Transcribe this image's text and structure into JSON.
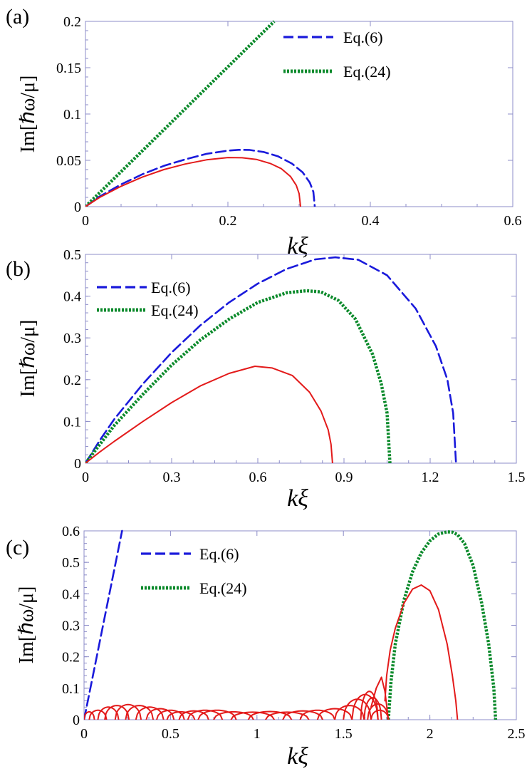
{
  "chart_data": [
    {
      "type": "line",
      "panel_label": "(a)",
      "xlabel": "kξ",
      "ylabel": "Im[ℏω/μ]",
      "xlim": [
        0,
        0.6
      ],
      "ylim": [
        0,
        0.2
      ],
      "xticks": [
        0,
        0.2,
        0.4,
        0.6
      ],
      "xtick_labels": [
        "0",
        "0.2",
        "0.4",
        "0.6"
      ],
      "yticks": [
        0,
        0.05,
        0.1,
        0.15,
        0.2
      ],
      "ytick_labels": [
        "0",
        "0.05",
        "0.1",
        "0.15",
        "0.2"
      ],
      "legend_position": "top-right",
      "series": [
        {
          "name": "Eq.(6)",
          "style": "dashed",
          "color": "#1a1adb",
          "in_legend": true,
          "x": [
            0,
            0.02,
            0.05,
            0.08,
            0.11,
            0.14,
            0.17,
            0.2,
            0.215,
            0.23,
            0.25,
            0.27,
            0.29,
            0.305,
            0.315,
            0.32,
            0.322
          ],
          "y": [
            0,
            0.011,
            0.024,
            0.035,
            0.044,
            0.051,
            0.057,
            0.0605,
            0.0613,
            0.0612,
            0.059,
            0.0545,
            0.0465,
            0.037,
            0.026,
            0.016,
            0
          ]
        },
        {
          "name": "Eq.(24)",
          "style": "dotted",
          "color": "#0b8a2b",
          "in_legend": true,
          "x": [
            0,
            0.265
          ],
          "y": [
            0,
            0.2
          ]
        },
        {
          "name": "numerical",
          "style": "solid",
          "color": "#e31a1a",
          "in_legend": false,
          "x": [
            0,
            0.02,
            0.05,
            0.08,
            0.11,
            0.14,
            0.17,
            0.2,
            0.22,
            0.24,
            0.26,
            0.275,
            0.288,
            0.296,
            0.3,
            0.302
          ],
          "y": [
            0,
            0.01,
            0.022,
            0.032,
            0.04,
            0.046,
            0.0505,
            0.053,
            0.0528,
            0.051,
            0.0465,
            0.041,
            0.0325,
            0.023,
            0.014,
            0
          ]
        }
      ]
    },
    {
      "type": "line",
      "panel_label": "(b)",
      "xlabel": "kξ",
      "ylabel": "Im[ℏω/μ]",
      "xlim": [
        0,
        1.5
      ],
      "ylim": [
        0,
        0.5
      ],
      "xticks": [
        0,
        0.3,
        0.6,
        0.9,
        1.2,
        1.5
      ],
      "xtick_labels": [
        "0",
        "0.3",
        "0.6",
        "0.9",
        "1.2",
        "1.5"
      ],
      "yticks": [
        0,
        0.1,
        0.2,
        0.3,
        0.4,
        0.5
      ],
      "ytick_labels": [
        "0",
        "0.1",
        "0.2",
        "0.3",
        "0.4",
        "0.5"
      ],
      "legend_position": "top-left",
      "series": [
        {
          "name": "Eq.(6)",
          "style": "dashed",
          "color": "#1a1adb",
          "in_legend": true,
          "x": [
            0,
            0.05,
            0.1,
            0.2,
            0.3,
            0.4,
            0.5,
            0.6,
            0.7,
            0.8,
            0.87,
            0.95,
            1.05,
            1.15,
            1.22,
            1.26,
            1.28,
            1.29
          ],
          "y": [
            0,
            0.055,
            0.105,
            0.19,
            0.265,
            0.33,
            0.385,
            0.43,
            0.465,
            0.488,
            0.493,
            0.487,
            0.45,
            0.37,
            0.28,
            0.2,
            0.12,
            0
          ]
        },
        {
          "name": "Eq.(24)",
          "style": "dotted",
          "color": "#0b8a2b",
          "in_legend": true,
          "x": [
            0,
            0.05,
            0.1,
            0.2,
            0.3,
            0.4,
            0.5,
            0.6,
            0.7,
            0.77,
            0.82,
            0.88,
            0.94,
            1.0,
            1.03,
            1.05,
            1.06
          ],
          "y": [
            0,
            0.045,
            0.09,
            0.165,
            0.235,
            0.295,
            0.345,
            0.385,
            0.408,
            0.413,
            0.41,
            0.39,
            0.345,
            0.26,
            0.19,
            0.12,
            0
          ]
        },
        {
          "name": "numerical",
          "style": "solid",
          "color": "#e31a1a",
          "in_legend": false,
          "x": [
            0,
            0.05,
            0.1,
            0.2,
            0.3,
            0.4,
            0.5,
            0.59,
            0.65,
            0.72,
            0.78,
            0.82,
            0.845,
            0.855,
            0.86
          ],
          "y": [
            0,
            0.027,
            0.052,
            0.1,
            0.145,
            0.185,
            0.215,
            0.232,
            0.228,
            0.21,
            0.17,
            0.125,
            0.08,
            0.045,
            0
          ]
        }
      ]
    },
    {
      "type": "line",
      "panel_label": "(c)",
      "xlabel": "kξ",
      "ylabel": "Im[ℏω/μ]",
      "xlim": [
        0,
        2.5
      ],
      "ylim": [
        0,
        0.6
      ],
      "xticks": [
        0,
        0.5,
        1,
        1.5,
        2,
        2.5
      ],
      "xtick_labels": [
        "0",
        "0.5",
        "1",
        "1.5",
        "2",
        "2.5"
      ],
      "yticks": [
        0,
        0.1,
        0.2,
        0.3,
        0.4,
        0.5,
        0.6
      ],
      "ytick_labels": [
        "0",
        "0.1",
        "0.2",
        "0.3",
        "0.4",
        "0.5",
        "0.6"
      ],
      "legend_position": "top-left",
      "series": [
        {
          "name": "Eq.(6)",
          "style": "dashed",
          "color": "#1a1adb",
          "in_legend": true,
          "x": [
            0,
            0.22
          ],
          "y": [
            0,
            0.6
          ]
        },
        {
          "name": "Eq.(24)",
          "style": "dotted",
          "color": "#0b8a2b",
          "in_legend": true,
          "x": [
            1.76,
            1.775,
            1.8,
            1.85,
            1.9,
            1.95,
            2.0,
            2.05,
            2.1,
            2.13,
            2.16,
            2.2,
            2.25,
            2.3,
            2.34,
            2.37,
            2.38
          ],
          "y": [
            0,
            0.12,
            0.24,
            0.38,
            0.47,
            0.53,
            0.568,
            0.59,
            0.597,
            0.596,
            0.588,
            0.56,
            0.49,
            0.37,
            0.24,
            0.1,
            0
          ]
        },
        {
          "name": "numerical main",
          "style": "solid",
          "color": "#e31a1a",
          "in_legend": false,
          "x": [
            1.74,
            1.75,
            1.77,
            1.8,
            1.85,
            1.9,
            1.95,
            2.0,
            2.05,
            2.1,
            2.13,
            2.15,
            2.16
          ],
          "y": [
            0.06,
            0.14,
            0.22,
            0.29,
            0.37,
            0.415,
            0.428,
            0.41,
            0.35,
            0.24,
            0.14,
            0.06,
            0
          ]
        },
        {
          "name": "numerical branches",
          "style": "solid",
          "color": "#e31a1a",
          "in_legend": false,
          "arches": [
            [
              0.0,
              0.06,
              0.025
            ],
            [
              0.03,
              0.13,
              0.03
            ],
            [
              0.08,
              0.2,
              0.04
            ],
            [
              0.12,
              0.26,
              0.045
            ],
            [
              0.18,
              0.33,
              0.048
            ],
            [
              0.24,
              0.4,
              0.045
            ],
            [
              0.3,
              0.46,
              0.04
            ],
            [
              0.36,
              0.52,
              0.035
            ],
            [
              0.42,
              0.58,
              0.03
            ],
            [
              0.48,
              0.64,
              0.025
            ],
            [
              0.55,
              0.72,
              0.028
            ],
            [
              0.6,
              0.8,
              0.03
            ],
            [
              0.66,
              0.88,
              0.03
            ],
            [
              0.75,
              0.98,
              0.025
            ],
            [
              0.85,
              1.1,
              0.024
            ],
            [
              0.95,
              1.2,
              0.026
            ],
            [
              1.05,
              1.3,
              0.024
            ],
            [
              1.15,
              1.38,
              0.028
            ],
            [
              1.25,
              1.45,
              0.03
            ],
            [
              1.35,
              1.55,
              0.035
            ],
            [
              1.45,
              1.62,
              0.045
            ],
            [
              1.5,
              1.66,
              0.065
            ],
            [
              1.55,
              1.7,
              0.08
            ],
            [
              1.6,
              1.7,
              0.09
            ],
            [
              1.62,
              1.72,
              0.07
            ],
            [
              1.64,
              1.76,
              0.05
            ],
            [
              1.66,
              1.76,
              0.03
            ]
          ],
          "spike": {
            "x": [
              1.66,
              1.69,
              1.72,
              1.74,
              1.76
            ],
            "y": [
              0.04,
              0.1,
              0.135,
              0.09,
              0
            ]
          }
        }
      ]
    }
  ]
}
